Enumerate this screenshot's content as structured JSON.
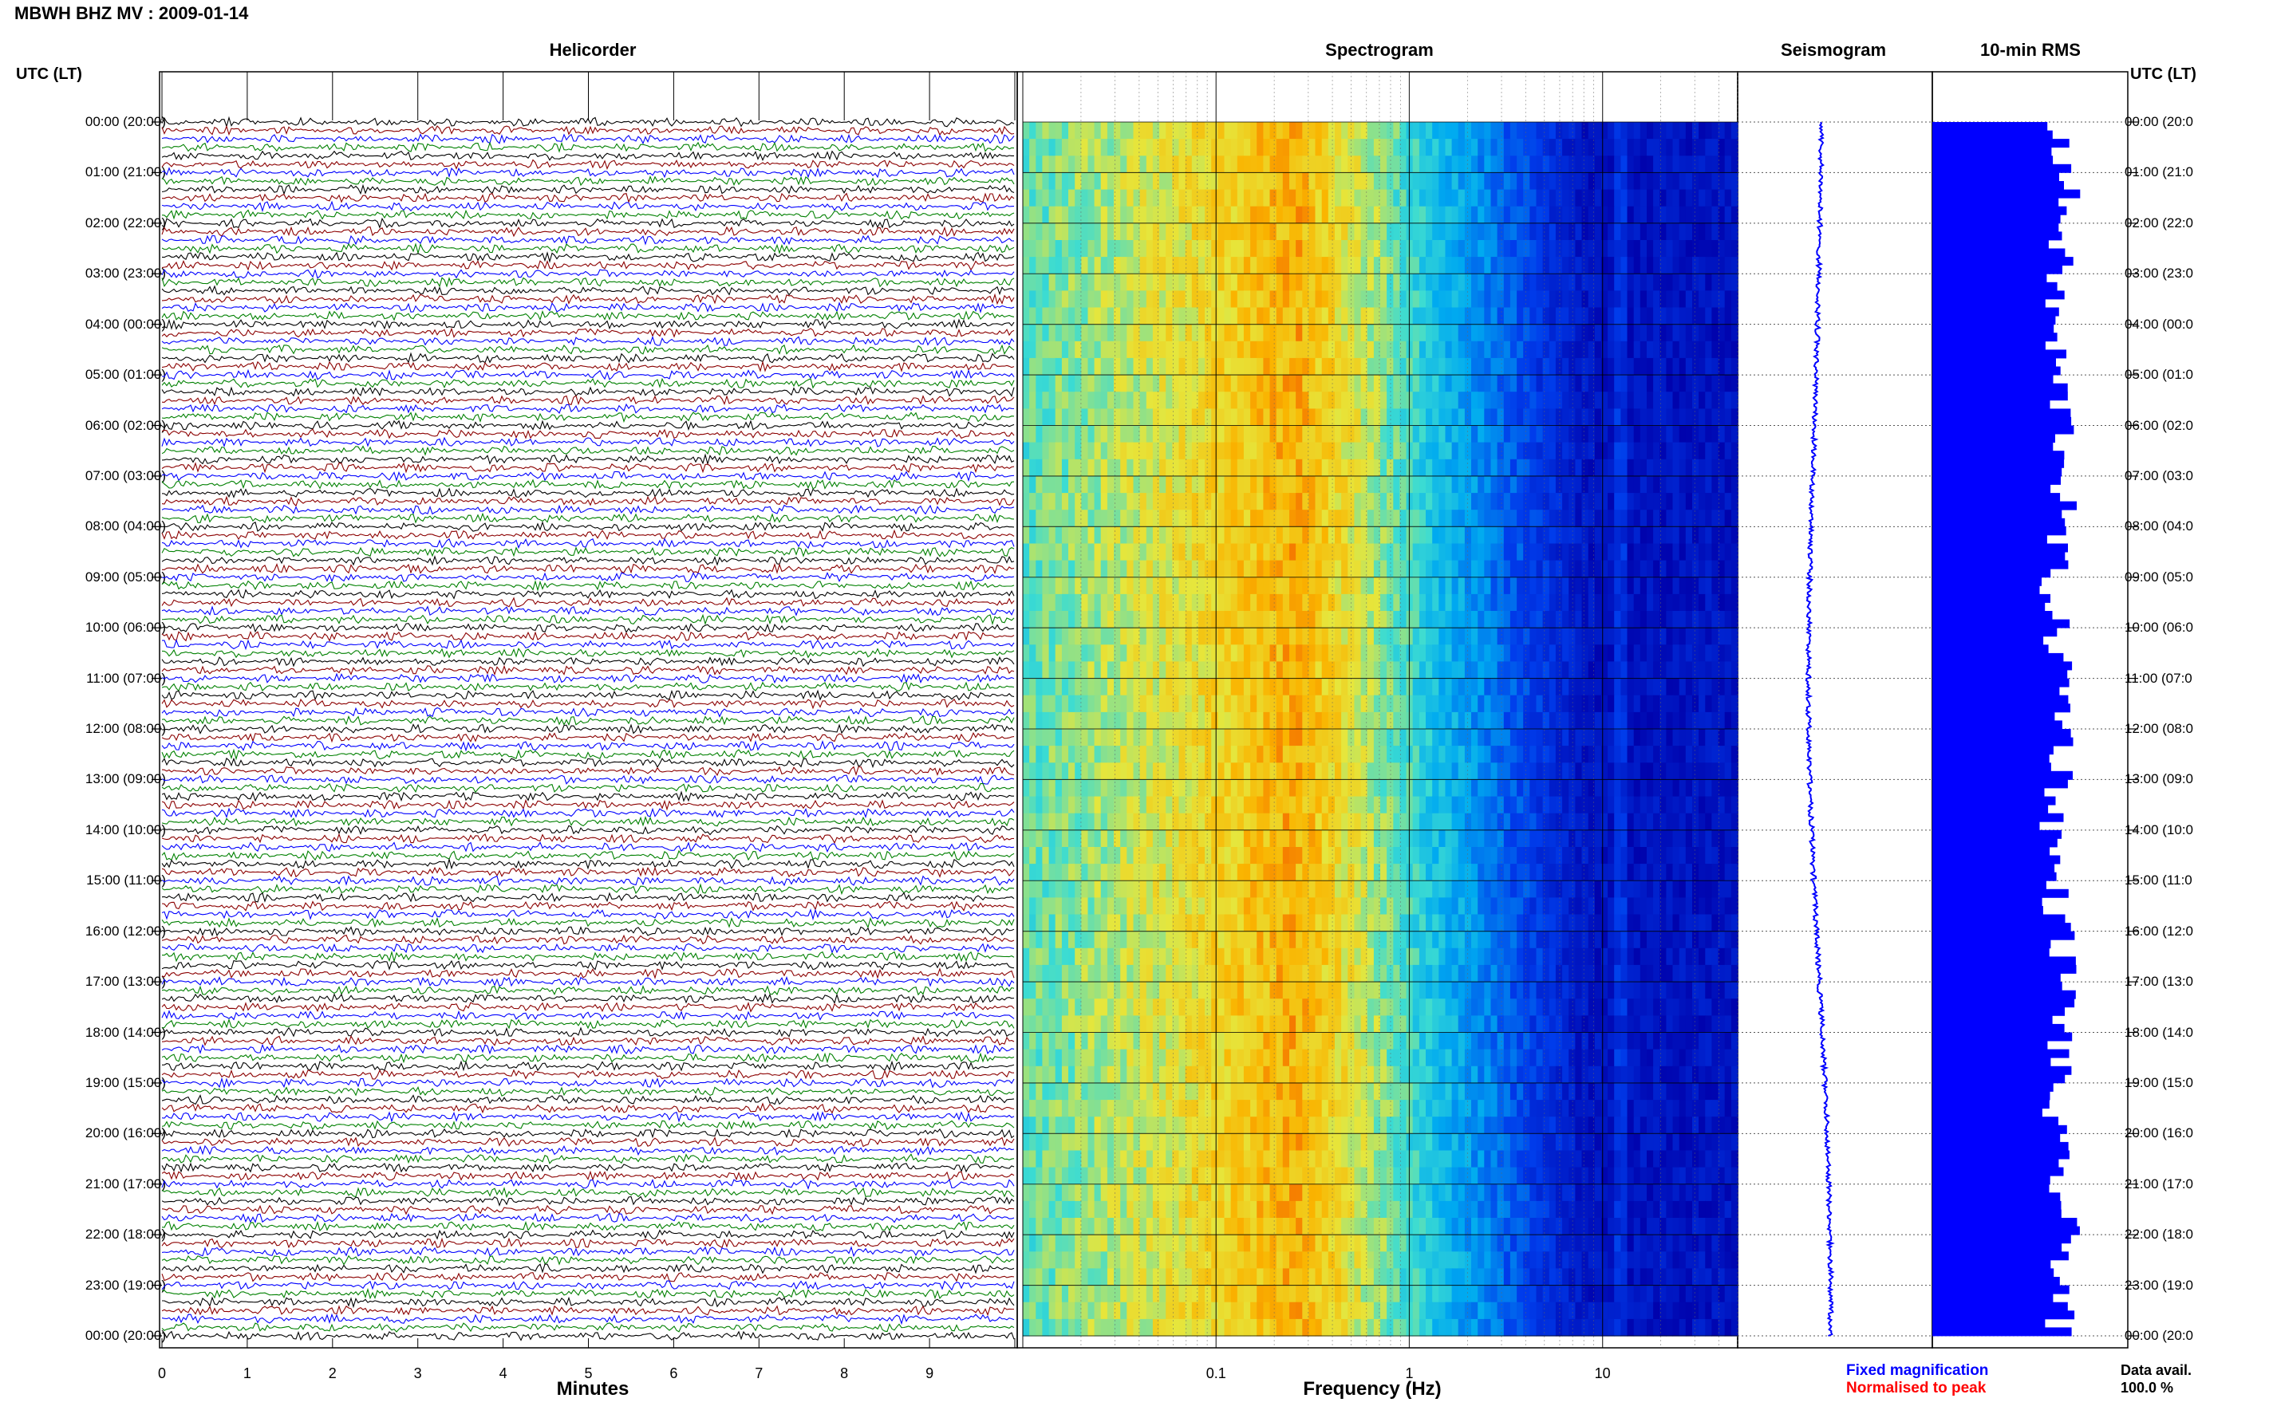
{
  "title": "MBWH BHZ MV : 2009-01-14",
  "panels": {
    "helicorder": "Helicorder",
    "spectrogram": "Spectrogram",
    "seismogram": "Seismogram",
    "rms": "10-min RMS"
  },
  "left_axis_label": "UTC (LT)",
  "right_axis_label": "UTC (LT)",
  "hour_labels": [
    "00:00 (20:00)",
    "01:00 (21:00)",
    "02:00 (22:00)",
    "03:00 (23:00)",
    "04:00 (00:00)",
    "05:00 (01:00)",
    "06:00 (02:00)",
    "07:00 (03:00)",
    "08:00 (04:00)",
    "09:00 (05:00)",
    "10:00 (06:00)",
    "11:00 (07:00)",
    "12:00 (08:00)",
    "13:00 (09:00)",
    "14:00 (10:00)",
    "15:00 (11:00)",
    "16:00 (12:00)",
    "17:00 (13:00)",
    "18:00 (14:00)",
    "19:00 (15:00)",
    "20:00 (16:00)",
    "21:00 (17:00)",
    "22:00 (18:00)",
    "23:00 (19:00)",
    "00:00 (20:00)"
  ],
  "right_hour_labels": [
    "00:00 (20:0",
    "01:00 (21:0",
    "02:00 (22:0",
    "03:00 (23:0",
    "04:00 (00:0",
    "05:00 (01:0",
    "06:00 (02:0",
    "07:00 (03:0",
    "08:00 (04:0",
    "09:00 (05:0",
    "10:00 (06:0",
    "11:00 (07:0",
    "12:00 (08:0",
    "13:00 (09:0",
    "14:00 (10:0",
    "15:00 (11:0",
    "16:00 (12:0",
    "17:00 (13:0",
    "18:00 (14:0",
    "19:00 (15:0",
    "20:00 (16:0",
    "21:00 (17:0",
    "22:00 (18:0",
    "23:00 (19:0",
    "00:00 (20:0"
  ],
  "legend": {
    "fixed": "Fixed magnification",
    "normalised": "Normalised to peak"
  },
  "availability": {
    "label": "Data avail.",
    "value": "100.0 %"
  },
  "colors": {
    "trace_cycle": [
      "#000000",
      "#8b0000",
      "#0000ff",
      "#008000"
    ],
    "seismogram": "#0000ff",
    "rms": "#0000ff"
  },
  "chart_data": [
    {
      "type": "line",
      "name": "helicorder",
      "title": "Helicorder",
      "xlabel": "Minutes",
      "x_ticks": [
        "0",
        "1",
        "2",
        "3",
        "4",
        "5",
        "6",
        "7",
        "8",
        "9"
      ],
      "xlim": [
        0,
        10
      ],
      "rows_per_hour": 6,
      "rows": 144,
      "grid": true
    },
    {
      "type": "heatmap",
      "name": "spectrogram",
      "title": "Spectrogram",
      "xlabel": "Frequency (Hz)",
      "x_scale": "log",
      "x_ticks": [
        "0.1",
        "1",
        "10"
      ],
      "xlim": [
        0.01,
        50
      ],
      "peak_band_hz": [
        0.18,
        0.35
      ],
      "steady_line_hz": 12.5
    },
    {
      "type": "line",
      "name": "seismogram",
      "title": "Seismogram",
      "note": "Fixed magnification"
    },
    {
      "type": "bar",
      "name": "rms",
      "title": "10-min RMS",
      "bars": 144
    }
  ]
}
